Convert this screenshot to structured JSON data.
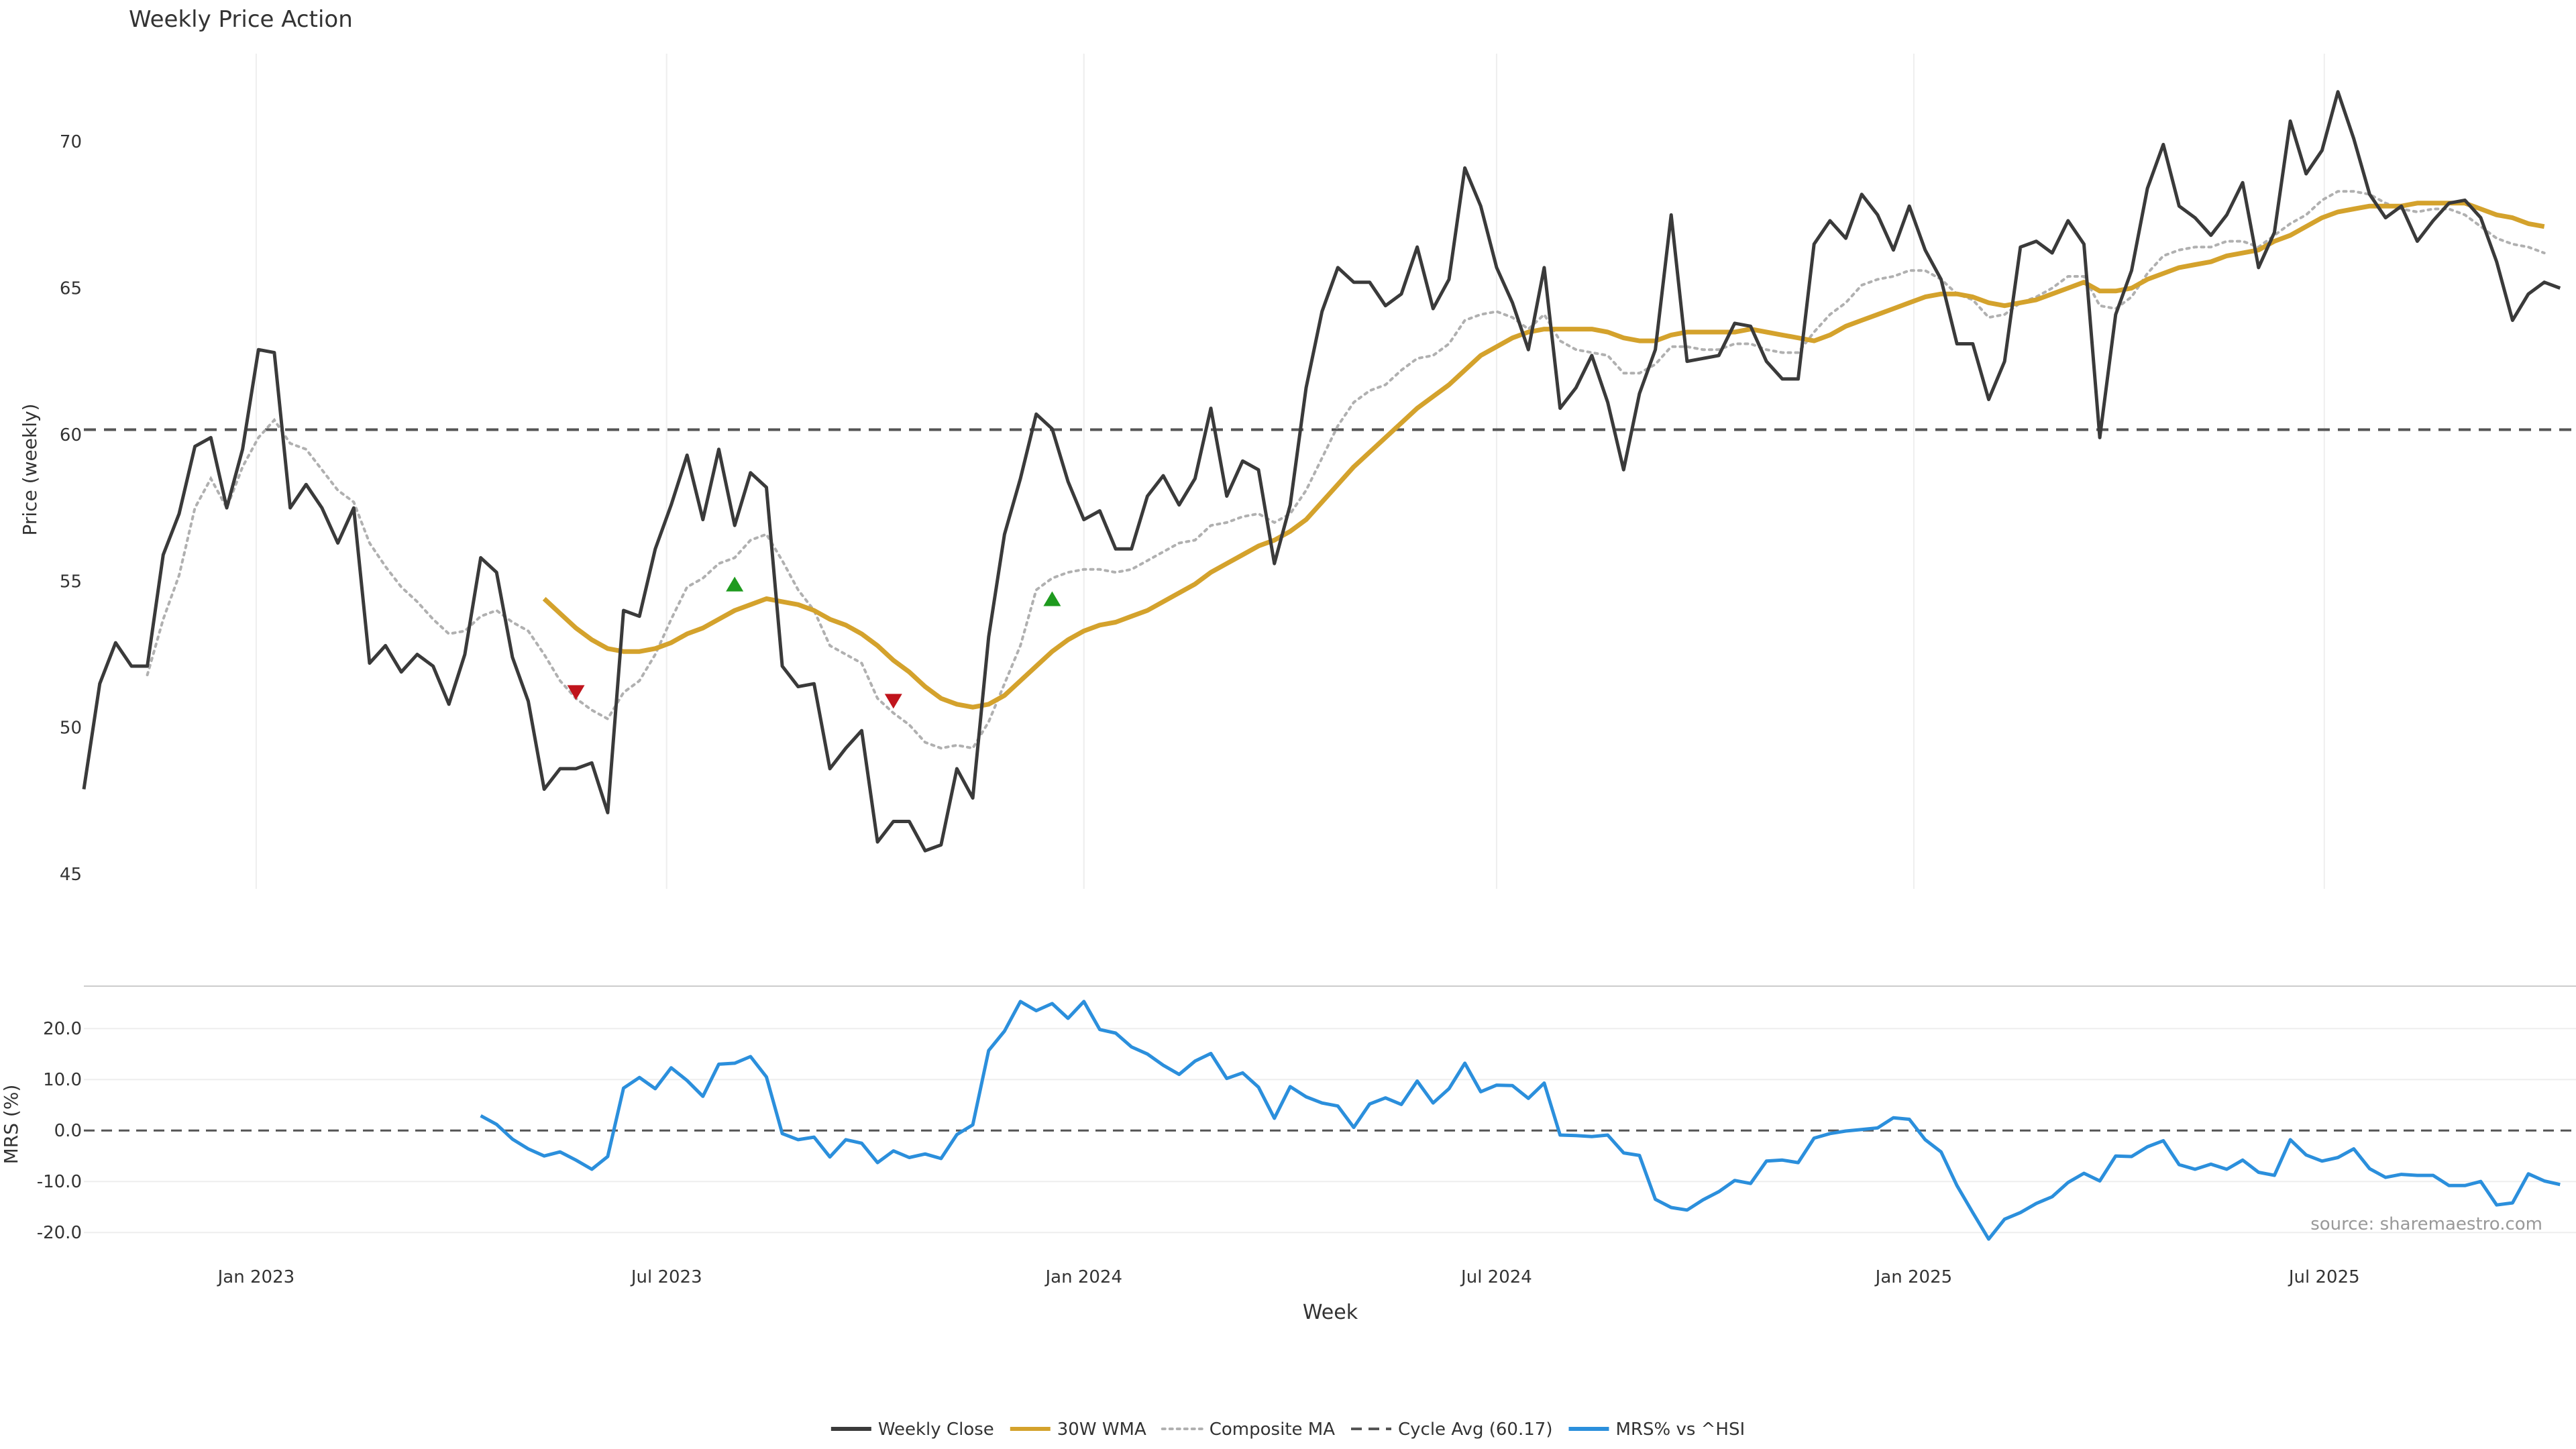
{
  "chart_data": {
    "type": "line",
    "title": "Weekly Price Action",
    "source": "source: sharemaestro.com",
    "xlabel": "Week",
    "x_ticks": [
      "Jan 2023",
      "Jul 2023",
      "Jan 2024",
      "Jul 2024",
      "Jan 2025",
      "Jul 2025"
    ],
    "x_start": "2022-10-17",
    "x_step_days": 7,
    "x_range": [
      "2022-10-17",
      "2025-10-20"
    ],
    "price_panel": {
      "ylabel": "Price (weekly)",
      "ylim": [
        44.5,
        73
      ],
      "yticks": [
        45,
        50,
        55,
        60,
        65,
        70
      ],
      "cycle_avg": 60.17,
      "grid": "vertical",
      "weekly_close": [
        47.9,
        51.5,
        52.9,
        52.1,
        52.1,
        55.9,
        57.3,
        59.6,
        59.9,
        57.5,
        59.5,
        62.9,
        62.8,
        57.5,
        58.3,
        57.5,
        56.3,
        57.5,
        52.2,
        52.8,
        51.9,
        52.5,
        52.1,
        50.8,
        52.5,
        55.8,
        55.3,
        52.4,
        50.9,
        47.9,
        48.6,
        48.6,
        48.8,
        47.1,
        54.0,
        53.8,
        56.1,
        57.6,
        59.3,
        57.1,
        59.5,
        56.9,
        58.7,
        58.2,
        52.1,
        51.4,
        51.5,
        48.6,
        49.3,
        49.9,
        46.1,
        46.8,
        46.8,
        45.8,
        46.0,
        48.6,
        47.6,
        53.1,
        56.6,
        58.5,
        60.7,
        60.2,
        58.4,
        57.1,
        57.4,
        56.1,
        56.1,
        57.9,
        58.6,
        57.6,
        58.5,
        60.9,
        57.9,
        59.1,
        58.8,
        55.6,
        57.6,
        61.6,
        64.2,
        65.7,
        65.2,
        65.2,
        64.4,
        64.8,
        66.4,
        64.3,
        65.3,
        69.1,
        67.8,
        65.7,
        64.5,
        62.9,
        65.7,
        60.9,
        61.6,
        62.7,
        61.1,
        58.8,
        61.4,
        62.9,
        67.5,
        62.5,
        62.6,
        62.7,
        63.8,
        63.7,
        62.5,
        61.9,
        61.9,
        66.5,
        67.3,
        66.7,
        68.2,
        67.5,
        66.3,
        67.8,
        66.3,
        65.3,
        63.1,
        63.1,
        61.2,
        62.5,
        66.4,
        66.6,
        66.2,
        67.3,
        66.5,
        59.9,
        64.1,
        65.6,
        68.4,
        69.9,
        67.8,
        67.4,
        66.8,
        67.5,
        68.6,
        65.7,
        66.9,
        70.7,
        68.9,
        69.7,
        71.7,
        70.1,
        68.2,
        67.4,
        67.8,
        66.6,
        67.3,
        67.9,
        68.0,
        67.4,
        65.9,
        63.9,
        64.8,
        65.2,
        65.0
      ],
      "wma_30w": [
        null,
        null,
        null,
        null,
        null,
        null,
        null,
        null,
        null,
        null,
        null,
        null,
        null,
        null,
        null,
        null,
        null,
        null,
        null,
        null,
        null,
        null,
        null,
        null,
        null,
        null,
        null,
        null,
        null,
        54.4,
        53.9,
        53.4,
        53.0,
        52.7,
        52.6,
        52.6,
        52.7,
        52.9,
        53.2,
        53.4,
        53.7,
        54.0,
        54.2,
        54.4,
        54.3,
        54.2,
        54.0,
        53.7,
        53.5,
        53.2,
        52.8,
        52.3,
        51.9,
        51.4,
        51.0,
        50.8,
        50.7,
        50.8,
        51.1,
        51.6,
        52.1,
        52.6,
        53.0,
        53.3,
        53.5,
        53.6,
        53.8,
        54.0,
        54.3,
        54.6,
        54.9,
        55.3,
        55.6,
        55.9,
        56.2,
        56.4,
        56.7,
        57.1,
        57.7,
        58.3,
        58.9,
        59.4,
        59.9,
        60.4,
        60.9,
        61.3,
        61.7,
        62.2,
        62.7,
        63.0,
        63.3,
        63.5,
        63.6,
        63.6,
        63.6,
        63.6,
        63.5,
        63.3,
        63.2,
        63.2,
        63.4,
        63.5,
        63.5,
        63.5,
        63.5,
        63.6,
        63.5,
        63.4,
        63.3,
        63.2,
        63.4,
        63.7,
        63.9,
        64.1,
        64.3,
        64.5,
        64.7,
        64.8,
        64.8,
        64.7,
        64.5,
        64.4,
        64.5,
        64.6,
        64.8,
        65.0,
        65.2,
        64.9,
        64.9,
        65.0,
        65.3,
        65.5,
        65.7,
        65.8,
        65.9,
        66.1,
        66.2,
        66.3,
        66.6,
        66.8,
        67.1,
        67.4,
        67.6,
        67.7,
        67.8,
        67.8,
        67.8,
        67.9,
        67.9,
        67.9,
        67.9,
        67.7,
        67.5,
        67.4,
        67.2,
        67.1
      ],
      "composite_ma": [
        null,
        null,
        null,
        null,
        51.8,
        53.7,
        55.2,
        57.5,
        58.5,
        57.5,
        58.9,
        59.9,
        60.5,
        59.7,
        59.5,
        58.8,
        58.1,
        57.7,
        56.3,
        55.5,
        54.8,
        54.3,
        53.7,
        53.2,
        53.3,
        53.8,
        54.0,
        53.6,
        53.3,
        52.5,
        51.6,
        51.0,
        50.6,
        50.3,
        51.2,
        51.6,
        52.5,
        53.7,
        54.8,
        55.1,
        55.6,
        55.8,
        56.4,
        56.6,
        55.7,
        54.7,
        54.0,
        52.8,
        52.5,
        52.2,
        51.0,
        50.5,
        50.1,
        49.5,
        49.3,
        49.4,
        49.3,
        50.2,
        51.5,
        52.8,
        54.7,
        55.1,
        55.3,
        55.4,
        55.4,
        55.3,
        55.4,
        55.7,
        56.0,
        56.3,
        56.4,
        56.9,
        57.0,
        57.2,
        57.3,
        57.0,
        57.3,
        58.1,
        59.2,
        60.3,
        61.1,
        61.5,
        61.7,
        62.2,
        62.6,
        62.7,
        63.1,
        63.9,
        64.1,
        64.2,
        64.0,
        63.6,
        64.1,
        63.2,
        62.9,
        62.8,
        62.7,
        62.1,
        62.1,
        62.4,
        63.0,
        63.0,
        62.9,
        62.9,
        63.1,
        63.1,
        62.9,
        62.8,
        62.8,
        63.5,
        64.1,
        64.5,
        65.1,
        65.3,
        65.4,
        65.6,
        65.6,
        65.3,
        64.8,
        64.6,
        64.0,
        64.1,
        64.5,
        64.7,
        65.0,
        65.4,
        65.4,
        64.4,
        64.3,
        64.7,
        65.5,
        66.1,
        66.3,
        66.4,
        66.4,
        66.6,
        66.6,
        66.4,
        66.8,
        67.2,
        67.5,
        68.0,
        68.3,
        68.3,
        68.2,
        67.9,
        67.7,
        67.6,
        67.7,
        67.7,
        67.5,
        67.1,
        66.7,
        66.5,
        66.4,
        66.2
      ],
      "signals": [
        {
          "week": 31,
          "value": 51.2,
          "dir": "down"
        },
        {
          "week": 41,
          "value": 54.9,
          "dir": "up"
        },
        {
          "week": 51,
          "value": 50.9,
          "dir": "down"
        },
        {
          "week": 61,
          "value": 54.4,
          "dir": "up"
        }
      ]
    },
    "mrs_panel": {
      "ylabel": "MRS (%)",
      "ylim": [
        -23,
        27
      ],
      "yticks": [
        "-20.0",
        "-10.0",
        "0.0",
        "10.0",
        "20.0"
      ],
      "grid": "horizontal",
      "mrs_vs_hsi": [
        null,
        null,
        null,
        null,
        null,
        null,
        null,
        null,
        null,
        null,
        null,
        null,
        null,
        null,
        null,
        null,
        null,
        null,
        null,
        null,
        null,
        null,
        null,
        null,
        null,
        2.9,
        1.2,
        -1.7,
        -3.6,
        -5.0,
        -4.2,
        -5.8,
        -7.6,
        -5.1,
        8.3,
        10.4,
        8.2,
        12.3,
        9.8,
        6.7,
        13.0,
        13.2,
        14.5,
        10.5,
        -0.6,
        -1.8,
        -1.3,
        -5.2,
        -1.8,
        -2.5,
        -6.3,
        -4.0,
        -5.3,
        -4.6,
        -5.5,
        -0.8,
        1.1,
        15.7,
        19.5,
        25.3,
        23.5,
        24.9,
        22.0,
        25.3,
        19.8,
        19.1,
        16.4,
        15.0,
        12.8,
        11.0,
        13.6,
        15.1,
        10.2,
        11.3,
        8.5,
        2.4,
        8.6,
        6.6,
        5.4,
        4.8,
        0.6,
        5.2,
        6.4,
        5.1,
        9.7,
        5.4,
        8.2,
        13.2,
        7.6,
        8.9,
        8.8,
        6.3,
        9.3,
        -0.9,
        -1.0,
        -1.2,
        -0.9,
        -4.4,
        -4.9,
        -13.5,
        -15.1,
        -15.6,
        -13.6,
        -12.0,
        -9.8,
        -10.4,
        -6.0,
        -5.8,
        -6.3,
        -1.5,
        -0.6,
        -0.1,
        0.2,
        0.5,
        2.5,
        2.2,
        -1.8,
        -4.2,
        -10.8,
        -16.1,
        -21.3,
        -17.4,
        -16.1,
        -14.3,
        -13.0,
        -10.2,
        -8.4,
        -9.9,
        -5.0,
        -5.1,
        -3.2,
        -2.0,
        -6.7,
        -7.6,
        -6.6,
        -7.6,
        -5.8,
        -8.2,
        -8.8,
        -1.8,
        -4.8,
        -6.0,
        -5.3,
        -3.6,
        -7.5,
        -9.2,
        -8.6,
        -8.8,
        -8.8,
        -10.8,
        -10.8,
        -10.0,
        -14.6,
        -14.2,
        -8.5,
        -9.9,
        -10.6
      ]
    },
    "legend": {
      "placement": "bottom",
      "items": [
        {
          "label": "Weekly Close",
          "style": "solid",
          "color": "#3a3a3a"
        },
        {
          "label": "30W WMA",
          "style": "solid",
          "color": "#d4a22c"
        },
        {
          "label": "Composite MA",
          "style": "dotted",
          "color": "#b0b0b0"
        },
        {
          "label": "Cycle Avg (60.17)",
          "style": "dashed",
          "color": "#555555"
        },
        {
          "label": "MRS% vs ^HSI",
          "style": "solid",
          "color": "#2b8fdc"
        }
      ]
    },
    "colors": {
      "close": "#3a3a3a",
      "wma": "#d4a22c",
      "composite": "#b0b0b0",
      "cycle": "#555555",
      "mrs": "#2b8fdc",
      "signal_up": "#1e9a1e",
      "signal_down": "#c0141c"
    }
  }
}
